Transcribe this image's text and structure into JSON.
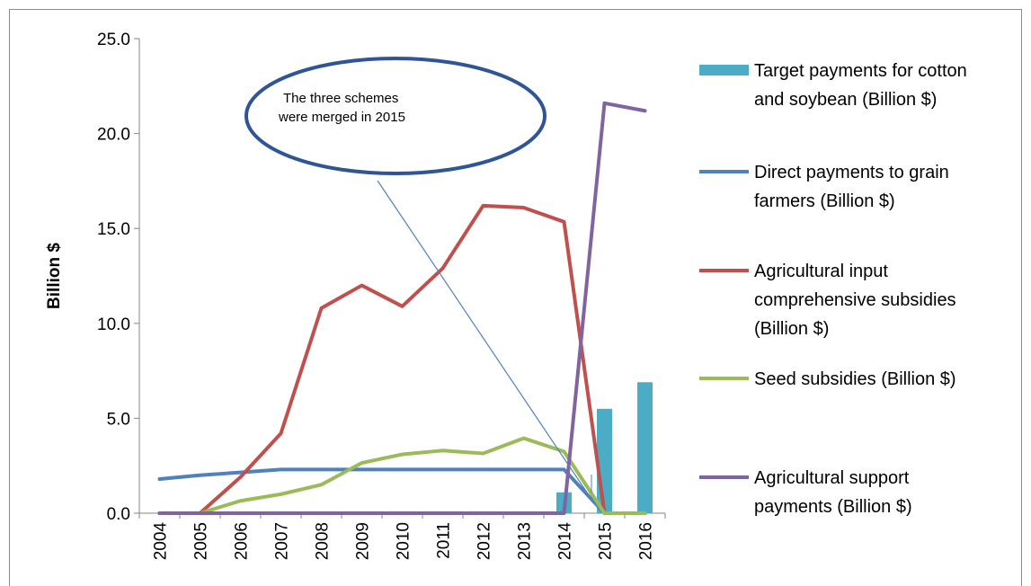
{
  "chart_data": {
    "type": "line",
    "ylabel": "Billion $",
    "xlabel": "",
    "ylim": [
      0,
      25
    ],
    "yticks": [
      "0.0",
      "5.0",
      "10.0",
      "15.0",
      "20.0",
      "25.0"
    ],
    "categories": [
      "2004",
      "2005",
      "2006",
      "2007",
      "2008",
      "2009",
      "2010",
      "2011",
      "2012",
      "2013",
      "2014",
      "2015",
      "2016"
    ],
    "bar_series": {
      "name": "Target payments for cotton and soybean (Billion $)",
      "color": "#4bacc6",
      "values": [
        null,
        null,
        null,
        null,
        null,
        null,
        null,
        null,
        null,
        null,
        1.1,
        5.5,
        6.9
      ]
    },
    "series": [
      {
        "name": "Direct payments to grain farmers (Billion $)",
        "color": "#4f81bd",
        "values": [
          1.8,
          2.0,
          2.15,
          2.3,
          2.3,
          2.3,
          2.3,
          2.3,
          2.3,
          2.3,
          2.3,
          0.0,
          0.0
        ]
      },
      {
        "name": "Agricultural input comprehensive subsidies (Billion $)",
        "color": "#c0504d",
        "values": [
          0.0,
          0.0,
          1.9,
          4.2,
          10.8,
          12.0,
          10.9,
          12.9,
          16.2,
          16.1,
          15.35,
          0.0,
          0.0
        ]
      },
      {
        "name": "Seed subsidies (Billion $)",
        "color": "#9bbb59",
        "values": [
          0.0,
          0.0,
          0.65,
          1.0,
          1.5,
          2.65,
          3.1,
          3.3,
          3.15,
          3.95,
          3.25,
          0.0,
          0.0
        ]
      },
      {
        "name": "Agricultural support payments (Billion $)",
        "color": "#8064a2",
        "values": [
          0.0,
          0.0,
          0.0,
          0.0,
          0.0,
          0.0,
          0.0,
          0.0,
          0.0,
          0.0,
          0.0,
          21.6,
          21.2
        ]
      }
    ],
    "legend": {
      "position": "right",
      "entries": [
        {
          "kind": "bar",
          "lines": [
            "Target payments for cotton",
            "and soybean (Billion $)"
          ],
          "color": "#4bacc6"
        },
        {
          "kind": "line",
          "lines": [
            "Direct payments to grain",
            "farmers (Billion $)"
          ],
          "color": "#4f81bd"
        },
        {
          "kind": "line",
          "lines": [
            "Agricultural input",
            "comprehensive subsidies",
            "(Billion $)"
          ],
          "color": "#c0504d"
        },
        {
          "kind": "line",
          "lines": [
            "Seed subsidies (Billion $)"
          ],
          "color": "#9bbb59"
        },
        {
          "kind": "line",
          "lines": [
            "Agricultural support",
            "payments (Billion $)"
          ],
          "color": "#8064a2"
        }
      ]
    },
    "annotation": {
      "lines": [
        "The three schemes",
        "were merged  in 2015"
      ],
      "border_color": "#2f5597",
      "arrow_color": "#4f81bd"
    },
    "grid": false
  }
}
